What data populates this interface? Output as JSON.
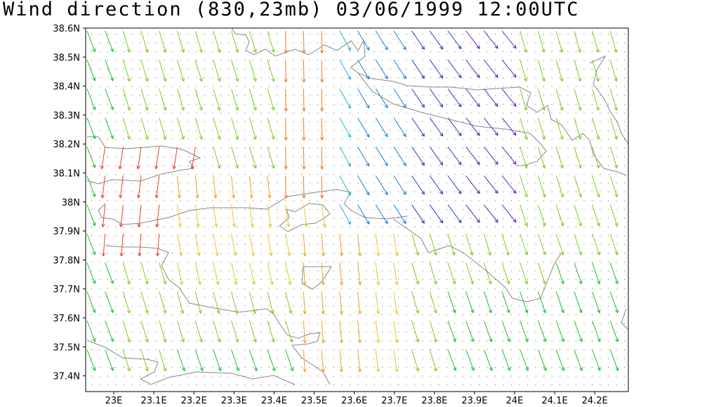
{
  "title": "Wind direction (830,23mb) 03/06/1999 12:00UTC",
  "map": {
    "y_labels": [
      "38.6N",
      "38.5N",
      "38.4N",
      "38.3N",
      "38.2N",
      "38.1N",
      "38N",
      "37.9N",
      "37.8N",
      "37.7N",
      "37.6N",
      "37.5N",
      "37.4N"
    ],
    "x_labels": [
      "23E",
      "23.1E",
      "23.2E",
      "23.3E",
      "23.4E",
      "23.5E",
      "23.6E",
      "23.7E",
      "23.8E",
      "23.9E",
      "24E",
      "24.1E",
      "24.2E"
    ],
    "lat_range": [
      37.35,
      38.6
    ],
    "lon_range": [
      22.95,
      24.26
    ],
    "field": "wind direction vectors colored by direction",
    "coastline_color": "#888888",
    "grid_dot_color": "#555555"
  }
}
